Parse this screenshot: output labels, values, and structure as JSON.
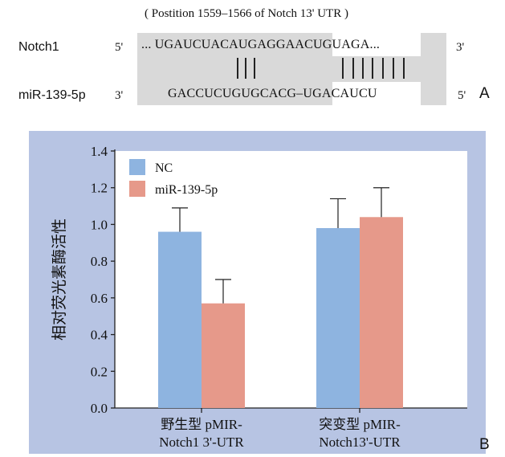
{
  "panel_a": {
    "position_caption": "( Postition 1559–1566 of Notch 13' UTR )",
    "gene_label": "Notch1",
    "mirna_label": "miR-139-5p",
    "notch_left_end": "5'",
    "notch_right_end": "3'",
    "mirna_left_end": "3'",
    "mirna_right_end": "5'",
    "notch_seq_prefix": "... UGAUCUACAUGAGGA",
    "notch_seq_seed": "ACUGUAGA",
    "notch_seq_suffix": "...",
    "mirna_seq_prefix": "GACCUCUGUGCACG–",
    "mirna_seq_seed": "UGACAUCU",
    "letter": "A"
  },
  "panel_b": {
    "letter": "B"
  },
  "chart_data": {
    "type": "bar",
    "ylabel": "相对荧光素酶活性",
    "ylim": [
      0,
      1.4
    ],
    "yticks": [
      0.0,
      0.2,
      0.4,
      0.6,
      0.8,
      1.0,
      1.2,
      1.4
    ],
    "ytick_labels": [
      "0.0",
      "0.2",
      "0.4",
      "0.6",
      "0.8",
      "1.0",
      "1.2",
      "1.4"
    ],
    "categories": [
      [
        "野生型 pMIR-",
        "Notch1 3'-UTR"
      ],
      [
        "突变型 pMIR-",
        "Notch13'-UTR"
      ]
    ],
    "series": [
      {
        "name": "NC",
        "values": [
          0.96,
          0.98
        ],
        "errors": [
          0.13,
          0.16
        ],
        "color": "#8eb4e0"
      },
      {
        "name": "miR-139-5p",
        "values": [
          0.57,
          1.04
        ],
        "errors": [
          0.13,
          0.16
        ],
        "color": "#e6998a"
      }
    ],
    "legend_position": "top-left",
    "grid": false,
    "plot_background": "#ffffff",
    "frame_background": "#b7c4e3"
  }
}
